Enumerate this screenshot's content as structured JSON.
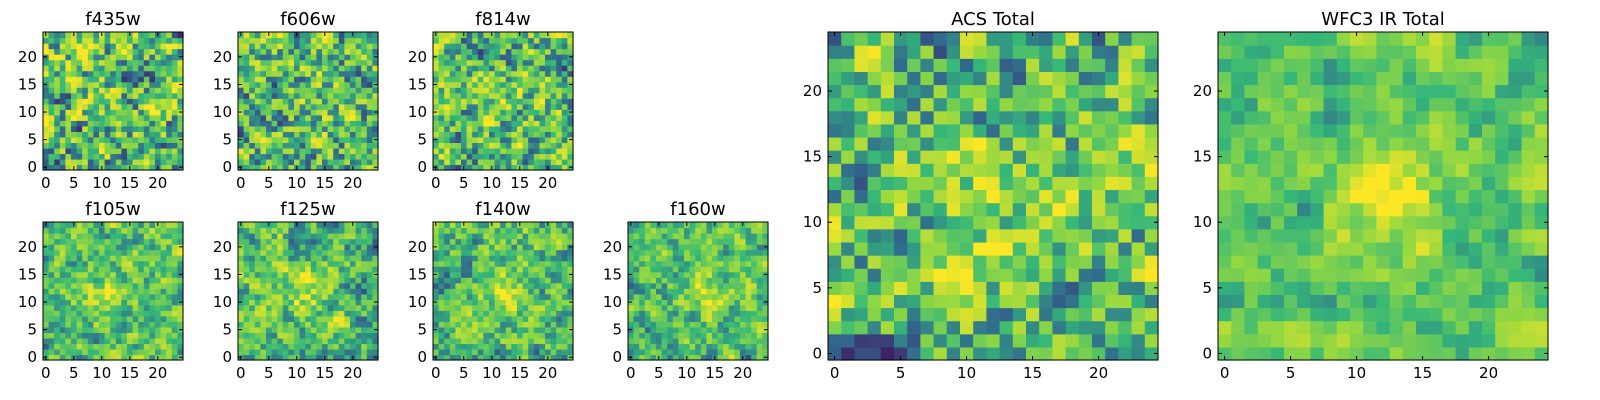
{
  "colormap": {
    "name": "viridis",
    "stops": [
      "#440154",
      "#31688e",
      "#35b779",
      "#90d743",
      "#fde725"
    ]
  },
  "chart_data": [
    {
      "type": "heatmap",
      "title": "f435w",
      "grid": false,
      "xlim": [
        0,
        24
      ],
      "ylim": [
        0,
        24
      ],
      "x_ticks": [
        0,
        5,
        10,
        15,
        20
      ],
      "y_ticks": [
        0,
        5,
        10,
        15,
        20
      ],
      "image_size": 25,
      "peak": [
        12,
        12
      ],
      "structure": 0.08,
      "noise": 0.45,
      "seed": 11
    },
    {
      "type": "heatmap",
      "title": "f606w",
      "grid": false,
      "xlim": [
        0,
        24
      ],
      "ylim": [
        0,
        24
      ],
      "x_ticks": [
        0,
        5,
        10,
        15,
        20
      ],
      "y_ticks": [
        0,
        5,
        10,
        15,
        20
      ],
      "image_size": 25,
      "peak": [
        12,
        12
      ],
      "structure": 0.15,
      "noise": 0.42,
      "seed": 23
    },
    {
      "type": "heatmap",
      "title": "f814w",
      "grid": false,
      "xlim": [
        0,
        24
      ],
      "ylim": [
        0,
        24
      ],
      "x_ticks": [
        0,
        5,
        10,
        15,
        20
      ],
      "y_ticks": [
        0,
        5,
        10,
        15,
        20
      ],
      "image_size": 25,
      "peak": [
        12,
        12
      ],
      "structure": 0.2,
      "noise": 0.4,
      "seed": 37
    },
    {
      "type": "heatmap",
      "title": "f105w",
      "grid": false,
      "xlim": [
        0,
        24
      ],
      "ylim": [
        0,
        24
      ],
      "x_ticks": [
        0,
        5,
        10,
        15,
        20
      ],
      "y_ticks": [
        0,
        5,
        10,
        15,
        20
      ],
      "image_size": 25,
      "peak": [
        11,
        12
      ],
      "structure": 0.4,
      "noise": 0.28,
      "seed": 41
    },
    {
      "type": "heatmap",
      "title": "f125w",
      "grid": false,
      "xlim": [
        0,
        24
      ],
      "ylim": [
        0,
        24
      ],
      "x_ticks": [
        0,
        5,
        10,
        15,
        20
      ],
      "y_ticks": [
        0,
        5,
        10,
        15,
        20
      ],
      "image_size": 25,
      "peak": [
        12,
        12
      ],
      "structure": 0.35,
      "noise": 0.3,
      "seed": 53
    },
    {
      "type": "heatmap",
      "title": "f140w",
      "grid": false,
      "xlim": [
        0,
        24
      ],
      "ylim": [
        0,
        24
      ],
      "x_ticks": [
        0,
        5,
        10,
        15,
        20
      ],
      "y_ticks": [
        0,
        5,
        10,
        15,
        20
      ],
      "image_size": 25,
      "peak": [
        12,
        12
      ],
      "structure": 0.4,
      "noise": 0.28,
      "seed": 67
    },
    {
      "type": "heatmap",
      "title": "f160w",
      "grid": false,
      "xlim": [
        0,
        24
      ],
      "ylim": [
        0,
        24
      ],
      "x_ticks": [
        0,
        5,
        10,
        15,
        20
      ],
      "y_ticks": [
        0,
        5,
        10,
        15,
        20
      ],
      "image_size": 25,
      "peak": [
        14,
        12
      ],
      "structure": 0.45,
      "noise": 0.26,
      "seed": 79
    },
    {
      "type": "heatmap",
      "title": "ACS Total",
      "grid": false,
      "xlim": [
        0,
        24
      ],
      "ylim": [
        0,
        24
      ],
      "x_ticks": [
        0,
        5,
        10,
        15,
        20
      ],
      "y_ticks": [
        0,
        5,
        10,
        15,
        20
      ],
      "image_size": 25,
      "peak": [
        12,
        12
      ],
      "structure": 0.25,
      "noise": 0.38,
      "seed": 97
    },
    {
      "type": "heatmap",
      "title": "WFC3 IR Total",
      "grid": false,
      "xlim": [
        0,
        24
      ],
      "ylim": [
        0,
        24
      ],
      "x_ticks": [
        0,
        5,
        10,
        15,
        20
      ],
      "y_ticks": [
        0,
        5,
        10,
        15,
        20
      ],
      "image_size": 25,
      "peak": [
        12,
        12
      ],
      "structure": 0.7,
      "noise": 0.18,
      "seed": 103
    }
  ]
}
